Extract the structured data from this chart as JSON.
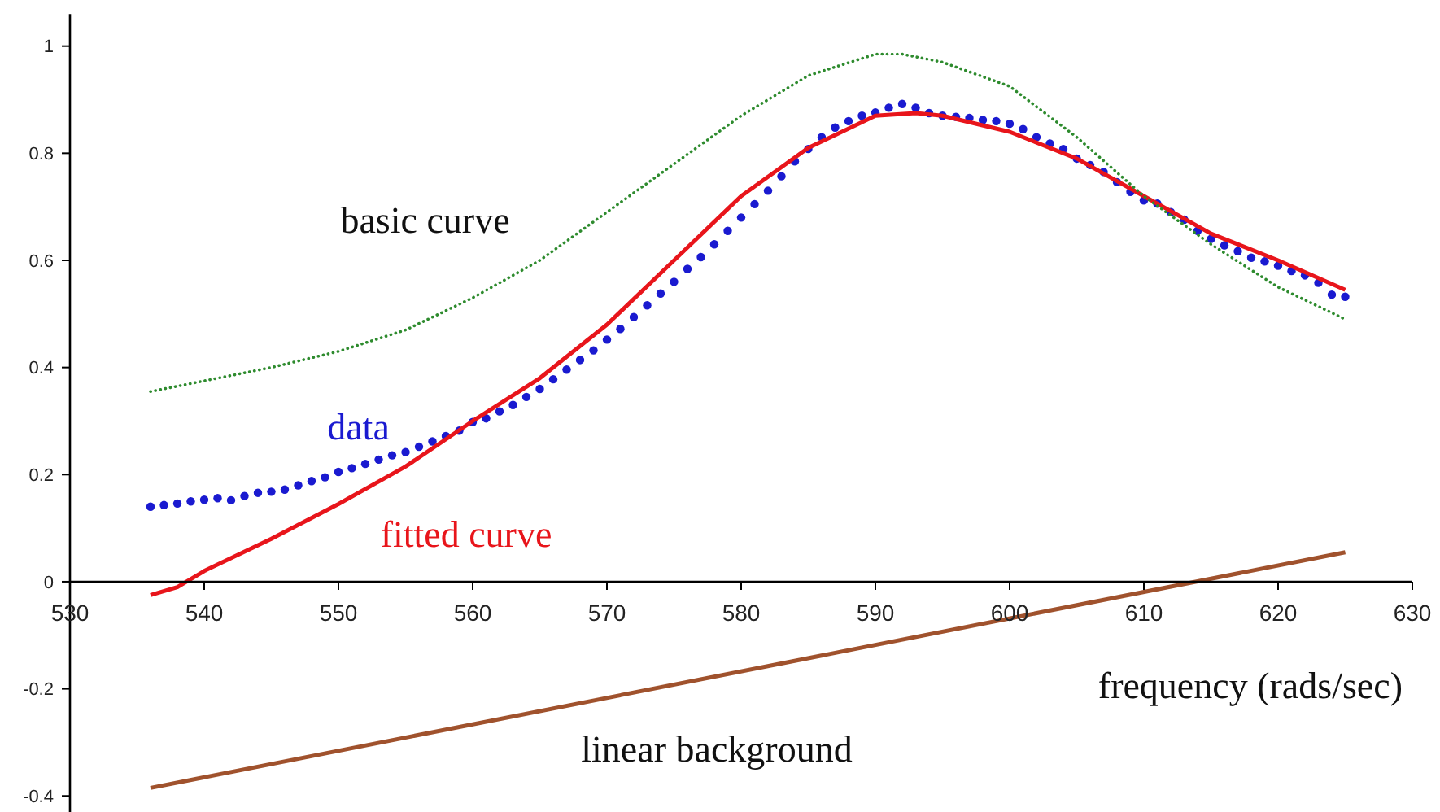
{
  "chart_data": {
    "type": "line",
    "xlabel": "frequency (rads/sec)",
    "xlim": [
      530,
      630
    ],
    "ylim": [
      -0.43,
      1.06
    ],
    "xticks": [
      530,
      540,
      550,
      560,
      570,
      580,
      590,
      600,
      610,
      620,
      630
    ],
    "yticks": [
      -0.4,
      -0.2,
      0,
      0.2,
      0.4,
      0.6,
      0.8,
      1
    ],
    "grid": false,
    "series": [
      {
        "name": "data",
        "type": "scatter",
        "marker": "circle",
        "color": "#1a1ad0",
        "x": [
          536,
          537,
          538,
          539,
          540,
          541,
          542,
          543,
          544,
          545,
          546,
          547,
          548,
          549,
          550,
          551,
          552,
          553,
          554,
          555,
          556,
          557,
          558,
          559,
          560,
          561,
          562,
          563,
          564,
          565,
          566,
          567,
          568,
          569,
          570,
          571,
          572,
          573,
          574,
          575,
          576,
          577,
          578,
          579,
          580,
          581,
          582,
          583,
          584,
          585,
          586,
          587,
          588,
          589,
          590,
          591,
          592,
          593,
          594,
          595,
          596,
          597,
          598,
          599,
          600,
          601,
          602,
          603,
          604,
          605,
          606,
          607,
          608,
          609,
          610,
          611,
          612,
          613,
          614,
          615,
          616,
          617,
          618,
          619,
          620,
          621,
          622,
          623,
          624,
          625
        ],
        "values": [
          0.14,
          0.143,
          0.146,
          0.15,
          0.153,
          0.156,
          0.152,
          0.16,
          0.166,
          0.168,
          0.172,
          0.18,
          0.188,
          0.195,
          0.205,
          0.212,
          0.22,
          0.228,
          0.236,
          0.242,
          0.252,
          0.262,
          0.272,
          0.282,
          0.298,
          0.305,
          0.318,
          0.33,
          0.345,
          0.36,
          0.378,
          0.396,
          0.414,
          0.432,
          0.452,
          0.472,
          0.494,
          0.516,
          0.538,
          0.56,
          0.584,
          0.606,
          0.63,
          0.655,
          0.68,
          0.705,
          0.73,
          0.757,
          0.785,
          0.808,
          0.83,
          0.848,
          0.86,
          0.87,
          0.876,
          0.885,
          0.892,
          0.885,
          0.875,
          0.87,
          0.868,
          0.866,
          0.862,
          0.86,
          0.855,
          0.845,
          0.83,
          0.818,
          0.808,
          0.79,
          0.778,
          0.765,
          0.746,
          0.728,
          0.712,
          0.706,
          0.69,
          0.676,
          0.655,
          0.64,
          0.628,
          0.617,
          0.605,
          0.598,
          0.59,
          0.58,
          0.572,
          0.558,
          0.536,
          0.532
        ]
      },
      {
        "name": "fitted curve",
        "line_style": "solid",
        "color": "#e8151b",
        "x": [
          536,
          538,
          540,
          545,
          550,
          555,
          560,
          565,
          570,
          575,
          580,
          585,
          590,
          593,
          595,
          600,
          605,
          610,
          615,
          620,
          625
        ],
        "values": [
          -0.025,
          -0.01,
          0.02,
          0.08,
          0.145,
          0.215,
          0.3,
          0.38,
          0.48,
          0.6,
          0.72,
          0.81,
          0.87,
          0.875,
          0.87,
          0.84,
          0.79,
          0.72,
          0.65,
          0.6,
          0.545
        ]
      },
      {
        "name": "basic curve",
        "line_style": "dotted",
        "color": "#2e8b2e",
        "x": [
          536,
          540,
          545,
          550,
          555,
          560,
          565,
          570,
          575,
          580,
          585,
          590,
          592,
          595,
          600,
          605,
          610,
          615,
          620,
          625
        ],
        "values": [
          0.355,
          0.375,
          0.4,
          0.43,
          0.47,
          0.53,
          0.6,
          0.69,
          0.78,
          0.87,
          0.945,
          0.985,
          0.985,
          0.97,
          0.925,
          0.83,
          0.72,
          0.63,
          0.55,
          0.49
        ]
      },
      {
        "name": "linear background",
        "line_style": "solid",
        "color": "#a0522d",
        "x": [
          536,
          625
        ],
        "values": [
          -0.385,
          0.055
        ]
      }
    ]
  }
}
